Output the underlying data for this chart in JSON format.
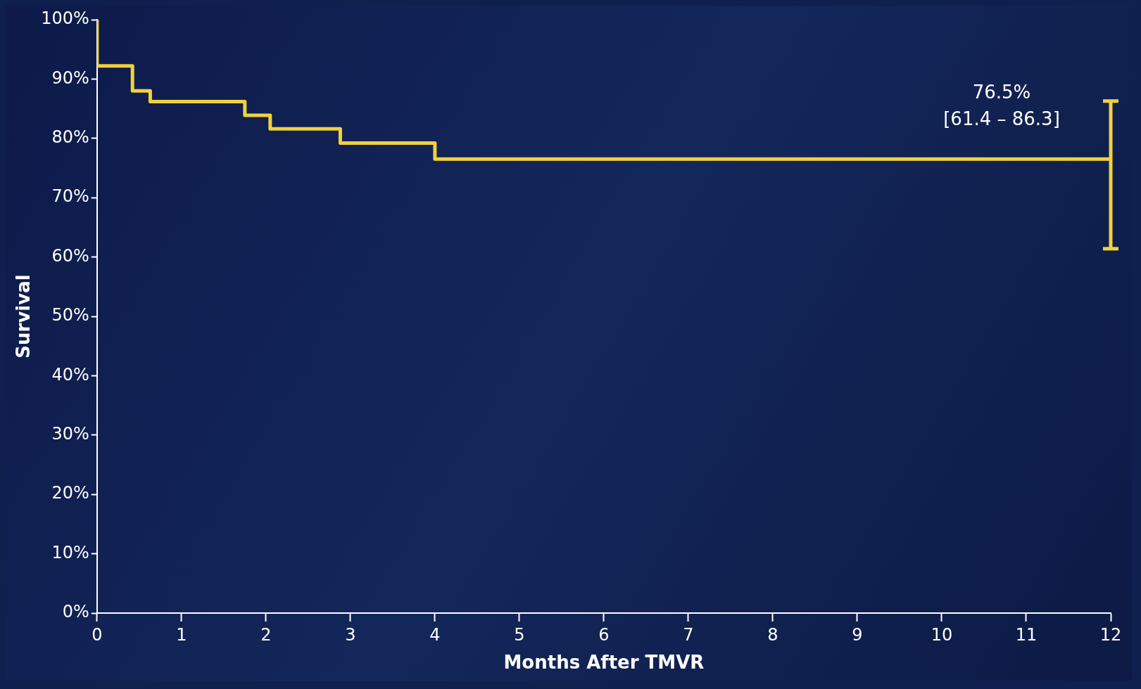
{
  "chart_data": {
    "type": "step",
    "xlabel": "Months After TMVR",
    "ylabel": "Survival",
    "series": [
      {
        "color": "#f2d13b",
        "x": [
          0,
          0,
          0.42,
          0.63,
          1.75,
          2.05,
          2.88,
          4.0,
          12
        ],
        "values": [
          100,
          92.2,
          88,
          86.2,
          83.9,
          81.6,
          79.2,
          76.5,
          76.5
        ],
        "errors": [
          null,
          null,
          null,
          null,
          null,
          null,
          null,
          null,
          [
            61.4,
            86.3
          ]
        ]
      }
    ],
    "xlim": [
      0,
      12
    ],
    "xticks": [
      0,
      1,
      2,
      3,
      4,
      5,
      6,
      7,
      8,
      9,
      10,
      11,
      12
    ],
    "ylim": [
      0,
      100
    ],
    "yticks": [
      {
        "value": 0,
        "label": "0%"
      },
      {
        "value": 10,
        "label": "10%"
      },
      {
        "value": 20,
        "label": "20%"
      },
      {
        "value": 30,
        "label": "30%"
      },
      {
        "value": 40,
        "label": "40%"
      },
      {
        "value": 50,
        "label": "50%"
      },
      {
        "value": 60,
        "label": "60%"
      },
      {
        "value": 70,
        "label": "70%"
      },
      {
        "value": 80,
        "label": "80%"
      },
      {
        "value": 90,
        "label": "90%"
      },
      {
        "value": 100,
        "label": "100%"
      }
    ],
    "annotations": [
      "76.5%",
      "[61.4 – 86.3]"
    ],
    "grid": false,
    "marker": "none",
    "line_style": "solid",
    "legend": false
  }
}
